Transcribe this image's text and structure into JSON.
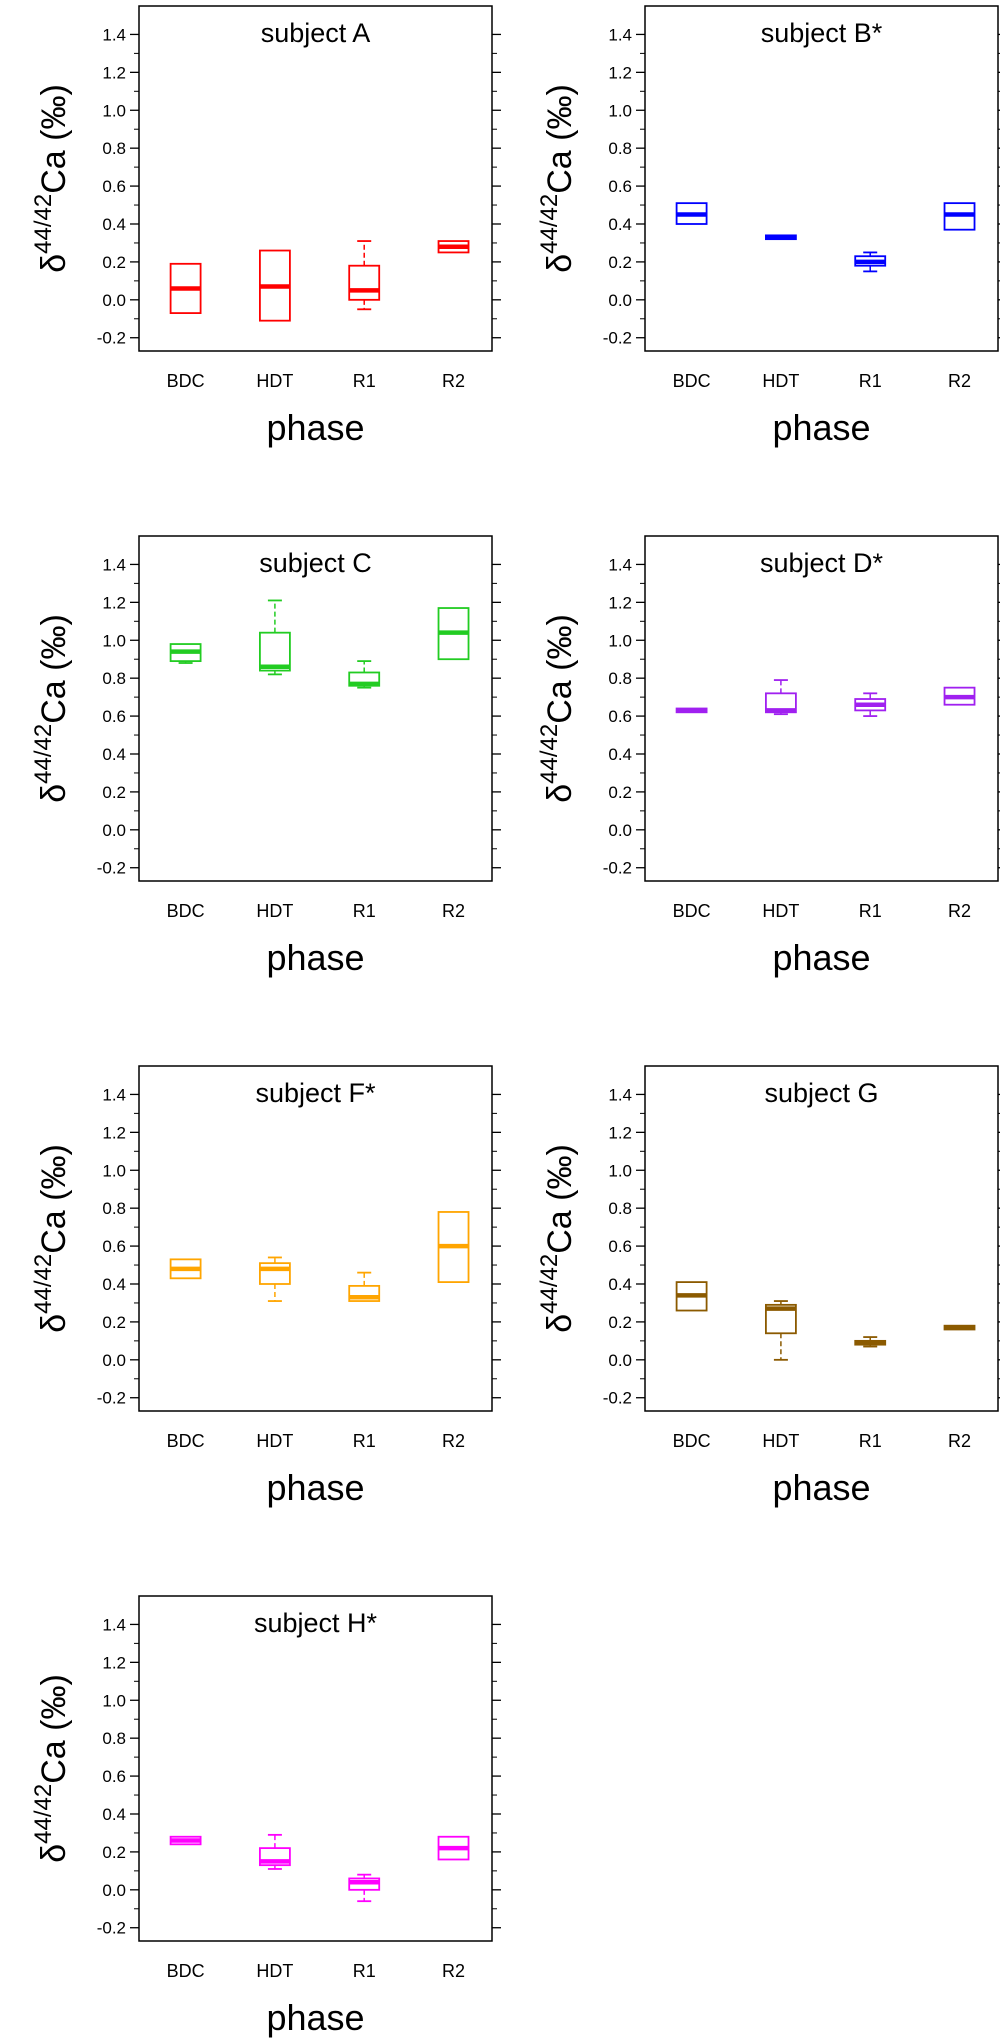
{
  "figure": {
    "xlabel": "phase",
    "ylabel_prefix": "δ",
    "ylabel_sup": "44/42",
    "ylabel_suffix": "Ca (‰)",
    "categories": [
      "BDC",
      "HDT",
      "R1",
      "R2"
    ],
    "yticks": [
      "1.4",
      "1.2",
      "1.0",
      "0.8",
      "0.6",
      "0.4",
      "0.2",
      "0.0",
      "-0.2"
    ]
  },
  "chart_data": [
    {
      "type": "box",
      "title": "subject A",
      "color": "#ff0000",
      "categories": [
        "BDC",
        "HDT",
        "R1",
        "R2"
      ],
      "ylim": [
        -0.27,
        1.55
      ],
      "xlabel": "phase",
      "ylabel": "δ44/42Ca (‰)",
      "boxes": [
        {
          "category": "BDC",
          "low": -0.07,
          "q1": -0.07,
          "median": 0.06,
          "q3": 0.19,
          "high": 0.19
        },
        {
          "category": "HDT",
          "low": -0.11,
          "q1": -0.11,
          "median": 0.07,
          "q3": 0.26,
          "high": 0.26
        },
        {
          "category": "R1",
          "low": -0.05,
          "q1": 0.0,
          "median": 0.05,
          "q3": 0.18,
          "high": 0.31
        },
        {
          "category": "R2",
          "low": 0.25,
          "q1": 0.25,
          "median": 0.28,
          "q3": 0.31,
          "high": 0.31
        }
      ]
    },
    {
      "type": "box",
      "title": "subject B*",
      "color": "#0000ff",
      "categories": [
        "BDC",
        "HDT",
        "R1",
        "R2"
      ],
      "ylim": [
        -0.27,
        1.55
      ],
      "xlabel": "phase",
      "ylabel": "δ44/42Ca (‰)",
      "boxes": [
        {
          "category": "BDC",
          "low": 0.4,
          "q1": 0.4,
          "median": 0.45,
          "q3": 0.51,
          "high": 0.51
        },
        {
          "category": "HDT",
          "low": 0.32,
          "q1": 0.32,
          "median": 0.33,
          "q3": 0.34,
          "high": 0.34
        },
        {
          "category": "R1",
          "low": 0.15,
          "q1": 0.18,
          "median": 0.2,
          "q3": 0.23,
          "high": 0.25
        },
        {
          "category": "R2",
          "low": 0.37,
          "q1": 0.37,
          "median": 0.45,
          "q3": 0.51,
          "high": 0.51
        }
      ]
    },
    {
      "type": "box",
      "title": "subject C",
      "color": "#22cc22",
      "categories": [
        "BDC",
        "HDT",
        "R1",
        "R2"
      ],
      "ylim": [
        -0.27,
        1.55
      ],
      "xlabel": "phase",
      "ylabel": "δ44/42Ca (‰)",
      "boxes": [
        {
          "category": "BDC",
          "low": 0.88,
          "q1": 0.89,
          "median": 0.94,
          "q3": 0.98,
          "high": 0.98
        },
        {
          "category": "HDT",
          "low": 0.82,
          "q1": 0.84,
          "median": 0.86,
          "q3": 1.04,
          "high": 1.21
        },
        {
          "category": "R1",
          "low": 0.75,
          "q1": 0.76,
          "median": 0.77,
          "q3": 0.83,
          "high": 0.89
        },
        {
          "category": "R2",
          "low": 0.9,
          "q1": 0.9,
          "median": 1.04,
          "q3": 1.17,
          "high": 1.17
        }
      ]
    },
    {
      "type": "box",
      "title": "subject D*",
      "color": "#a020f0",
      "categories": [
        "BDC",
        "HDT",
        "R1",
        "R2"
      ],
      "ylim": [
        -0.27,
        1.55
      ],
      "xlabel": "phase",
      "ylabel": "δ44/42Ca (‰)",
      "boxes": [
        {
          "category": "BDC",
          "low": 0.62,
          "q1": 0.62,
          "median": 0.63,
          "q3": 0.64,
          "high": 0.64
        },
        {
          "category": "HDT",
          "low": 0.61,
          "q1": 0.62,
          "median": 0.63,
          "q3": 0.72,
          "high": 0.79
        },
        {
          "category": "R1",
          "low": 0.6,
          "q1": 0.63,
          "median": 0.66,
          "q3": 0.69,
          "high": 0.72
        },
        {
          "category": "R2",
          "low": 0.66,
          "q1": 0.66,
          "median": 0.7,
          "q3": 0.75,
          "high": 0.75
        }
      ]
    },
    {
      "type": "box",
      "title": "subject F*",
      "color": "#ffa500",
      "categories": [
        "BDC",
        "HDT",
        "R1",
        "R2"
      ],
      "ylim": [
        -0.27,
        1.55
      ],
      "xlabel": "phase",
      "ylabel": "δ44/42Ca (‰)",
      "boxes": [
        {
          "category": "BDC",
          "low": 0.43,
          "q1": 0.43,
          "median": 0.48,
          "q3": 0.53,
          "high": 0.53
        },
        {
          "category": "HDT",
          "low": 0.31,
          "q1": 0.4,
          "median": 0.48,
          "q3": 0.51,
          "high": 0.54
        },
        {
          "category": "R1",
          "low": 0.31,
          "q1": 0.31,
          "median": 0.33,
          "q3": 0.39,
          "high": 0.46
        },
        {
          "category": "R2",
          "low": 0.41,
          "q1": 0.41,
          "median": 0.6,
          "q3": 0.78,
          "high": 0.78
        }
      ]
    },
    {
      "type": "box",
      "title": "subject G",
      "color": "#8b5a00",
      "categories": [
        "BDC",
        "HDT",
        "R1",
        "R2"
      ],
      "ylim": [
        -0.27,
        1.55
      ],
      "xlabel": "phase",
      "ylabel": "δ44/42Ca (‰)",
      "boxes": [
        {
          "category": "BDC",
          "low": 0.26,
          "q1": 0.26,
          "median": 0.34,
          "q3": 0.41,
          "high": 0.41
        },
        {
          "category": "HDT",
          "low": 0.0,
          "q1": 0.14,
          "median": 0.27,
          "q3": 0.29,
          "high": 0.31
        },
        {
          "category": "R1",
          "low": 0.07,
          "q1": 0.08,
          "median": 0.09,
          "q3": 0.1,
          "high": 0.12
        },
        {
          "category": "R2",
          "low": 0.16,
          "q1": 0.16,
          "median": 0.17,
          "q3": 0.18,
          "high": 0.18
        }
      ]
    },
    {
      "type": "box",
      "title": "subject H*",
      "color": "#ff00ff",
      "categories": [
        "BDC",
        "HDT",
        "R1",
        "R2"
      ],
      "ylim": [
        -0.27,
        1.55
      ],
      "xlabel": "phase",
      "ylabel": "δ44/42Ca (‰)",
      "boxes": [
        {
          "category": "BDC",
          "low": 0.24,
          "q1": 0.24,
          "median": 0.26,
          "q3": 0.28,
          "high": 0.28
        },
        {
          "category": "HDT",
          "low": 0.11,
          "q1": 0.13,
          "median": 0.15,
          "q3": 0.22,
          "high": 0.29
        },
        {
          "category": "R1",
          "low": -0.06,
          "q1": 0.0,
          "median": 0.04,
          "q3": 0.06,
          "high": 0.08
        },
        {
          "category": "R2",
          "low": 0.16,
          "q1": 0.16,
          "median": 0.22,
          "q3": 0.28,
          "high": 0.28
        }
      ]
    }
  ]
}
